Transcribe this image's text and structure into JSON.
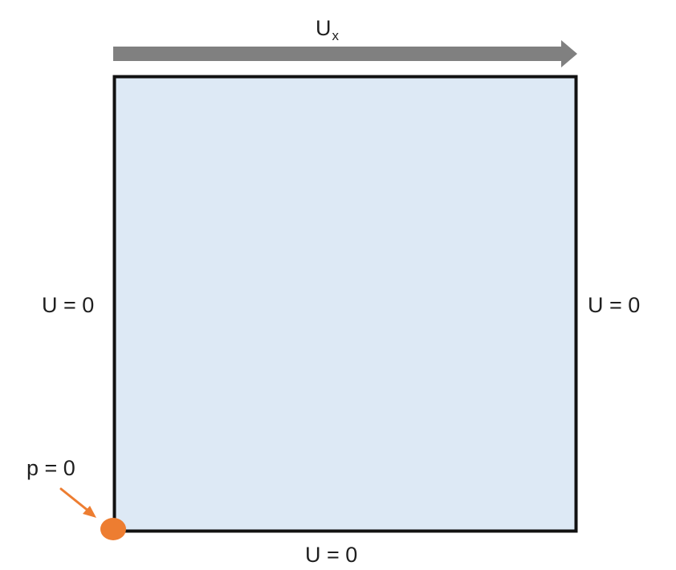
{
  "diagram": {
    "top_label": {
      "main": "U",
      "subscript": "x"
    },
    "left_label": "U = 0",
    "right_label": "U = 0",
    "bottom_label": "U = 0",
    "corner_label": "p = 0",
    "colors": {
      "domain_fill": "#dde9f5",
      "domain_border": "#111111",
      "lid_arrow": "#808080",
      "pressure_point": "#ed7d31",
      "pointer_arrow": "#ed7d31",
      "text": "#1f1f1f"
    }
  }
}
